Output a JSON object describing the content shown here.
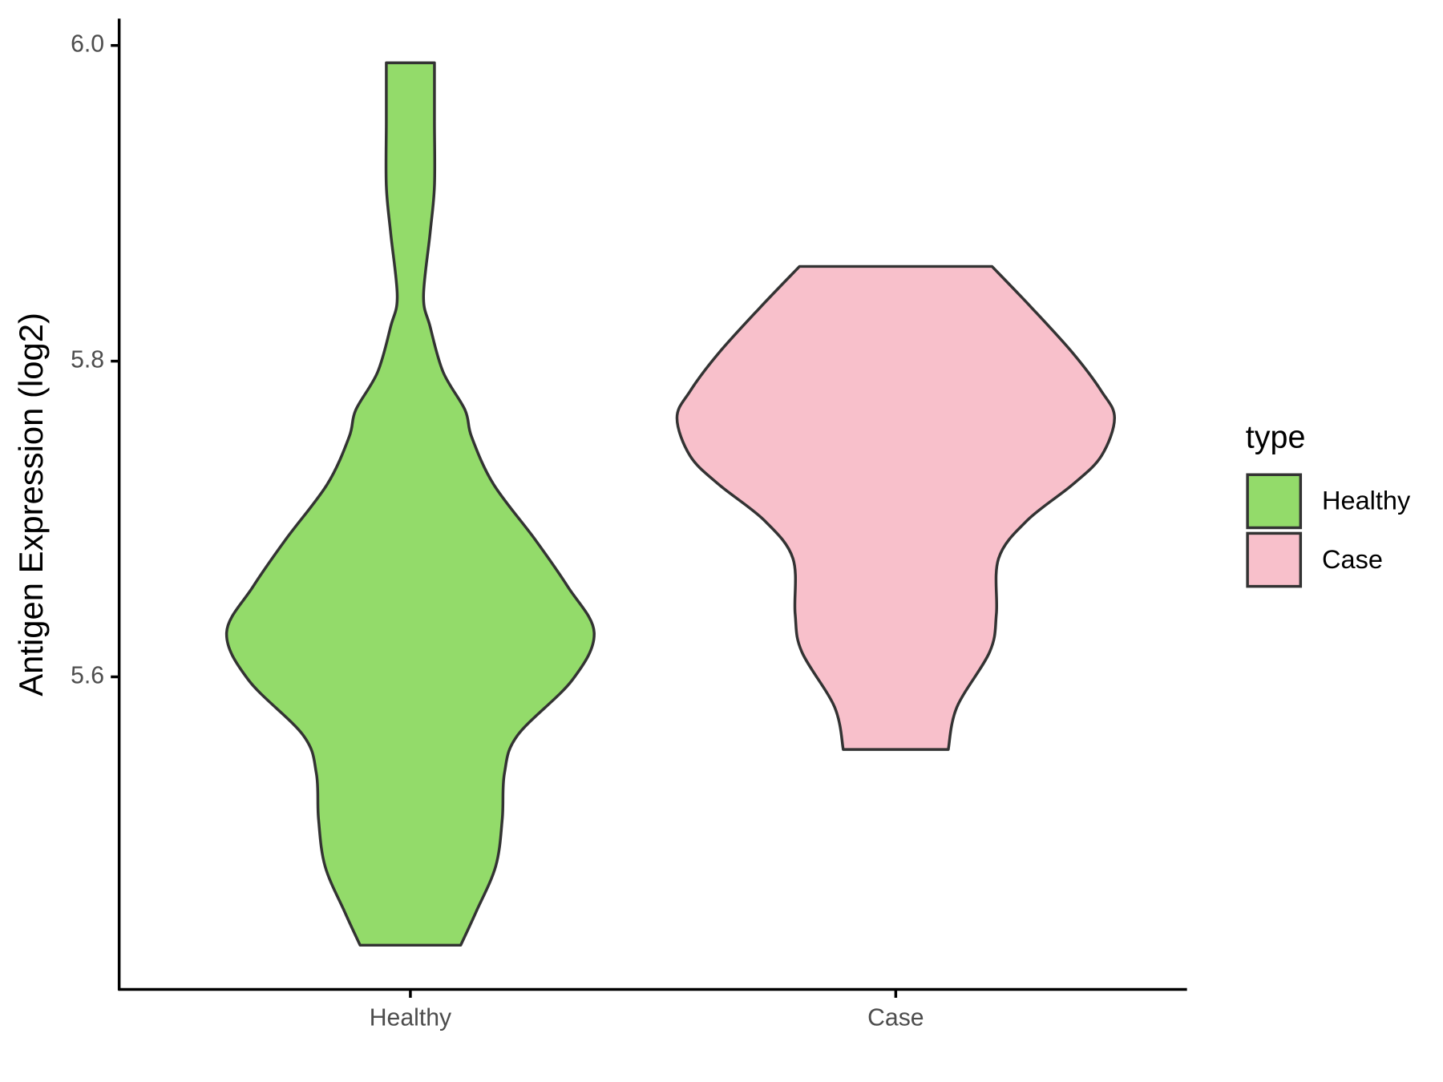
{
  "chart_data": {
    "type": "violin",
    "ylabel": "Antigen Expression (log2)",
    "categories": [
      "Healthy",
      "Case"
    ],
    "legend_title": "type",
    "legend": "right",
    "ylim": [
      5.402,
      6.017
    ],
    "yticks": [
      {
        "value": 5.6,
        "label": "5.6"
      },
      {
        "value": 5.8,
        "label": "5.8"
      },
      {
        "value": 6.0,
        "label": "6.0"
      }
    ],
    "series": [
      {
        "name": "Healthy",
        "color": "#93db6a",
        "y": [
          5.989,
          5.952,
          5.911,
          5.881,
          5.841,
          5.822,
          5.793,
          5.769,
          5.752,
          5.722,
          5.687,
          5.657,
          5.628,
          5.598,
          5.563,
          5.539,
          5.51,
          5.48,
          5.451,
          5.43
        ],
        "width": [
          0.11,
          0.11,
          0.11,
          0.09,
          0.06,
          0.09,
          0.15,
          0.25,
          0.28,
          0.38,
          0.57,
          0.72,
          0.84,
          0.74,
          0.49,
          0.43,
          0.42,
          0.39,
          0.3,
          0.23
        ]
      },
      {
        "name": "Case",
        "color": "#f8c0cb",
        "y": [
          5.86,
          5.834,
          5.805,
          5.781,
          5.764,
          5.74,
          5.722,
          5.699,
          5.675,
          5.64,
          5.616,
          5.581,
          5.554
        ],
        "width": [
          0.44,
          0.62,
          0.81,
          0.94,
          1.0,
          0.94,
          0.81,
          0.6,
          0.47,
          0.46,
          0.43,
          0.28,
          0.24
        ]
      }
    ]
  }
}
